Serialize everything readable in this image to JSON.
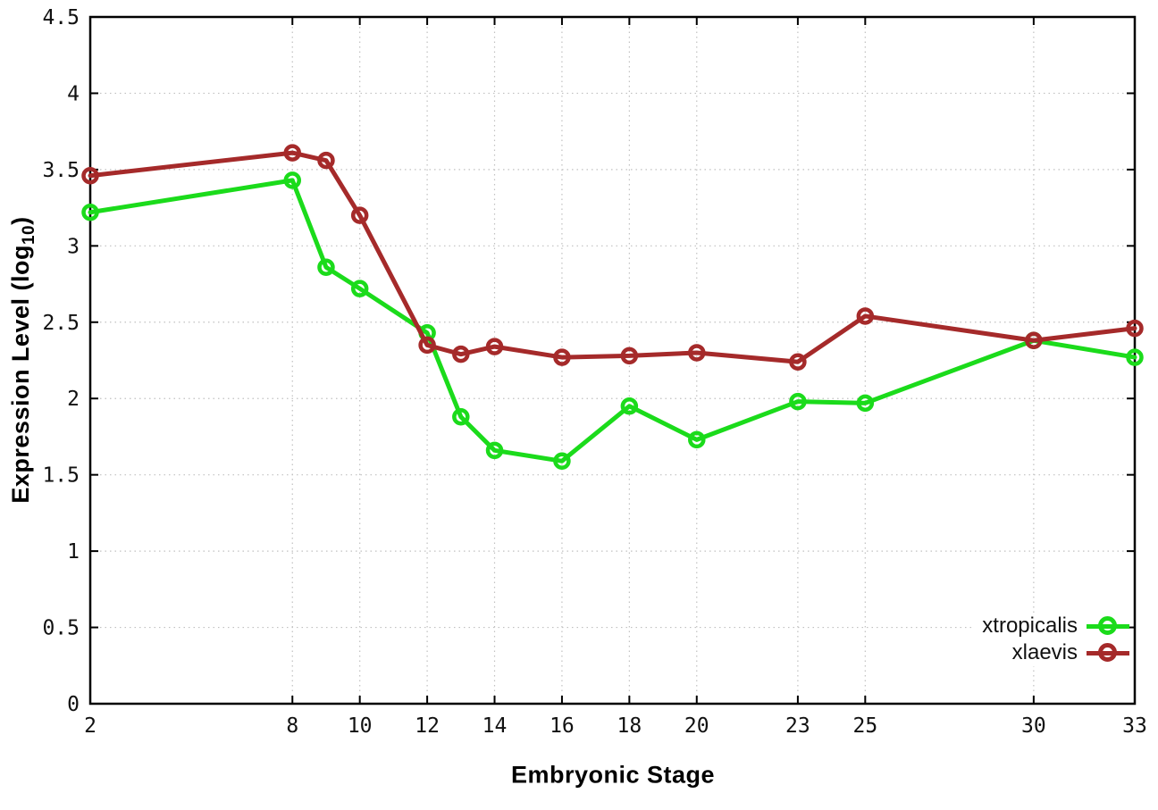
{
  "chart_data": {
    "type": "line",
    "xlabel": "Embryonic Stage",
    "ylabel": "Expression Level (log10)",
    "ylabel_parts": {
      "pre": "Expression Level (log",
      "sub": "10",
      "post": ")"
    },
    "x": [
      2,
      8,
      9,
      10,
      12,
      13,
      14,
      16,
      18,
      20,
      23,
      25,
      30,
      33
    ],
    "series": [
      {
        "name": "xtropicalis",
        "color": "#1bdb1b",
        "values": [
          3.22,
          3.43,
          2.86,
          2.72,
          2.43,
          1.88,
          1.66,
          1.59,
          1.95,
          1.73,
          1.98,
          1.97,
          2.38,
          2.27
        ]
      },
      {
        "name": "xlaevis",
        "color": "#a52a2a",
        "values": [
          3.46,
          3.61,
          3.56,
          3.2,
          2.35,
          2.29,
          2.34,
          2.27,
          2.28,
          2.3,
          2.24,
          2.54,
          2.38,
          2.46
        ]
      }
    ],
    "xlim": [
      2,
      33
    ],
    "ylim": [
      0,
      4.5
    ],
    "xticks": [
      2,
      8,
      10,
      12,
      14,
      16,
      18,
      20,
      23,
      25,
      30,
      33
    ],
    "yticks": [
      0,
      0.5,
      1,
      1.5,
      2,
      2.5,
      3,
      3.5,
      4,
      4.5
    ],
    "grid": true,
    "legend_position": "bottom-right"
  },
  "style": {
    "grid_color": "#c0c0c0",
    "border_color": "#000000",
    "tick_label_color": "#111111",
    "background": "#ffffff"
  }
}
